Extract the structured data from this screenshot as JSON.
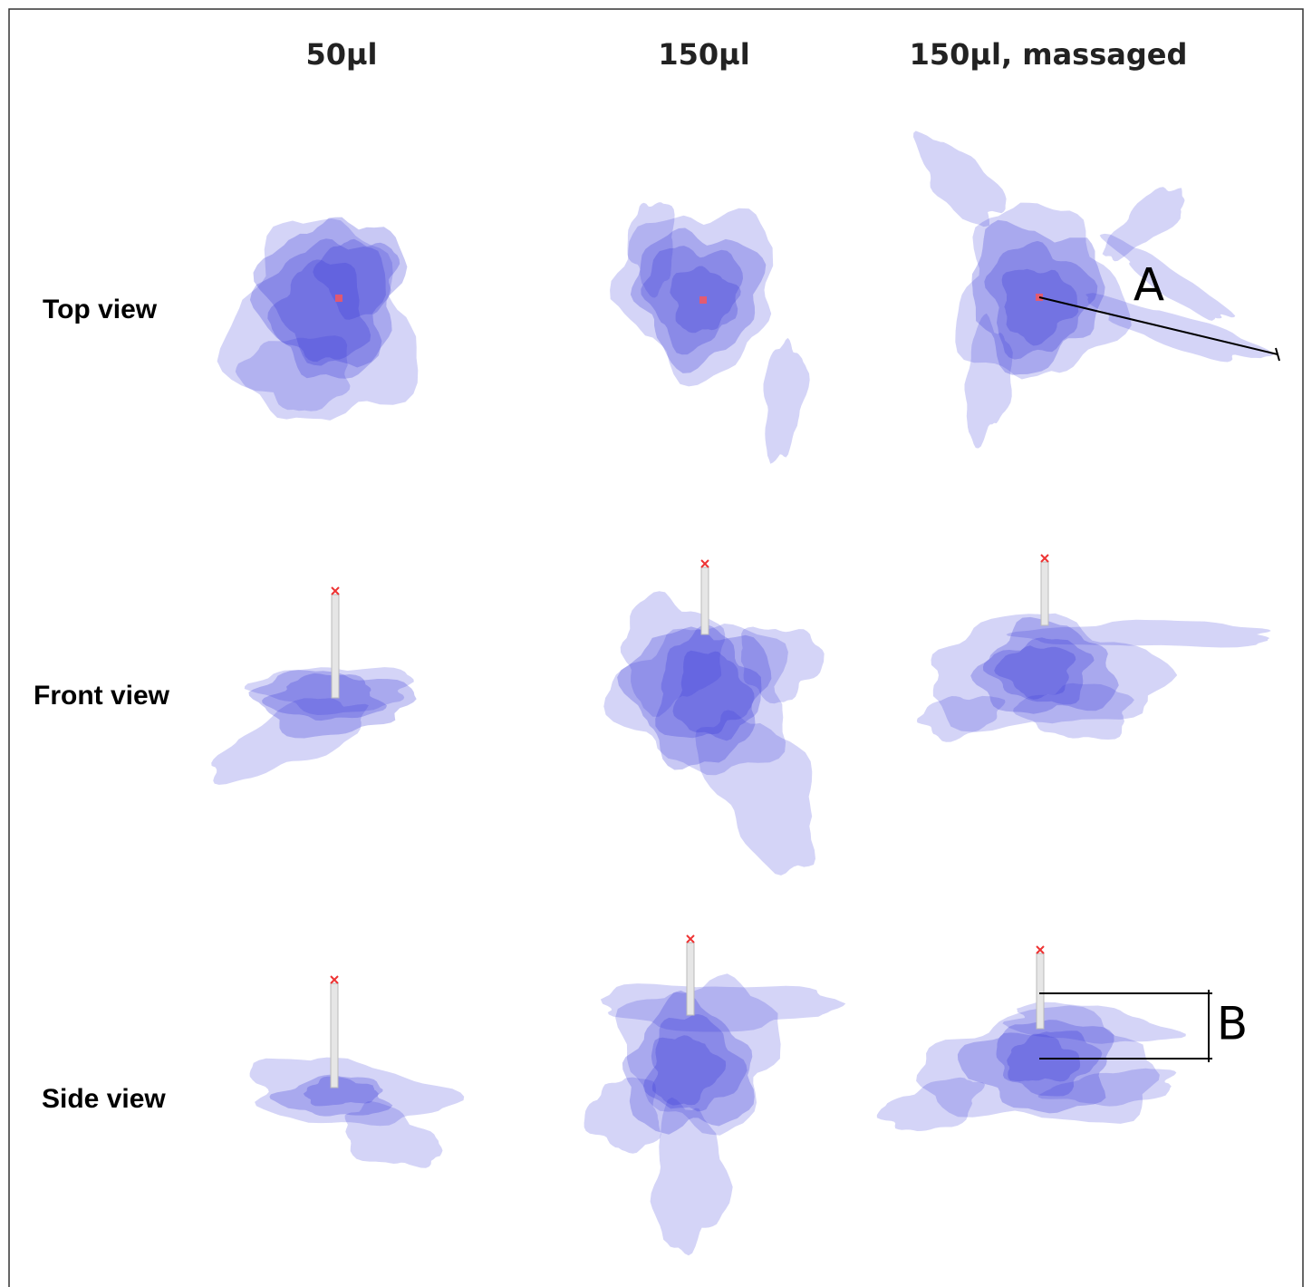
{
  "columns": [
    "50µl",
    "150µl",
    "150µl, massaged"
  ],
  "rows": [
    "Top view",
    "Front view",
    "Side view"
  ],
  "annotations": {
    "a": "A",
    "b": "B"
  }
}
